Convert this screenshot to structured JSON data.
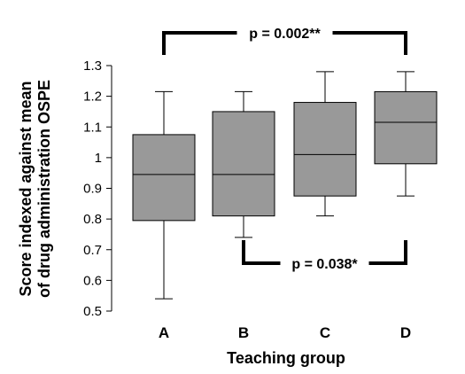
{
  "chart_data": {
    "type": "boxplot",
    "xlabel": "Teaching group",
    "ylabel_lines": [
      "Score indexed against mean",
      "of drug administration OSPE"
    ],
    "ylim": [
      0.5,
      1.3
    ],
    "yticks": [
      {
        "value": 0.5,
        "label": "0.5"
      },
      {
        "value": 0.6,
        "label": "0.6"
      },
      {
        "value": 0.7,
        "label": "0.7"
      },
      {
        "value": 0.8,
        "label": "0.8"
      },
      {
        "value": 0.9,
        "label": "0.9"
      },
      {
        "value": 1.0,
        "label": "1"
      },
      {
        "value": 1.1,
        "label": "1.1"
      },
      {
        "value": 1.2,
        "label": "1.2"
      },
      {
        "value": 1.3,
        "label": "1.3"
      }
    ],
    "categories": [
      "A",
      "B",
      "C",
      "D"
    ],
    "boxes": [
      {
        "category": "A",
        "min": 0.54,
        "q1": 0.795,
        "median": 0.945,
        "q3": 1.075,
        "max": 1.215
      },
      {
        "category": "B",
        "min": 0.74,
        "q1": 0.81,
        "median": 0.945,
        "q3": 1.15,
        "max": 1.215
      },
      {
        "category": "C",
        "min": 0.81,
        "q1": 0.875,
        "median": 1.01,
        "q3": 1.18,
        "max": 1.28
      },
      {
        "category": "D",
        "min": 0.875,
        "q1": 0.98,
        "median": 1.115,
        "q3": 1.215,
        "max": 1.28
      }
    ],
    "box_color": "#999999",
    "significance": [
      {
        "from": "A",
        "to": "D",
        "label": "p = 0.002**",
        "position": "above"
      },
      {
        "from": "B",
        "to": "D",
        "label": "p = 0.038*",
        "position": "below"
      }
    ]
  }
}
